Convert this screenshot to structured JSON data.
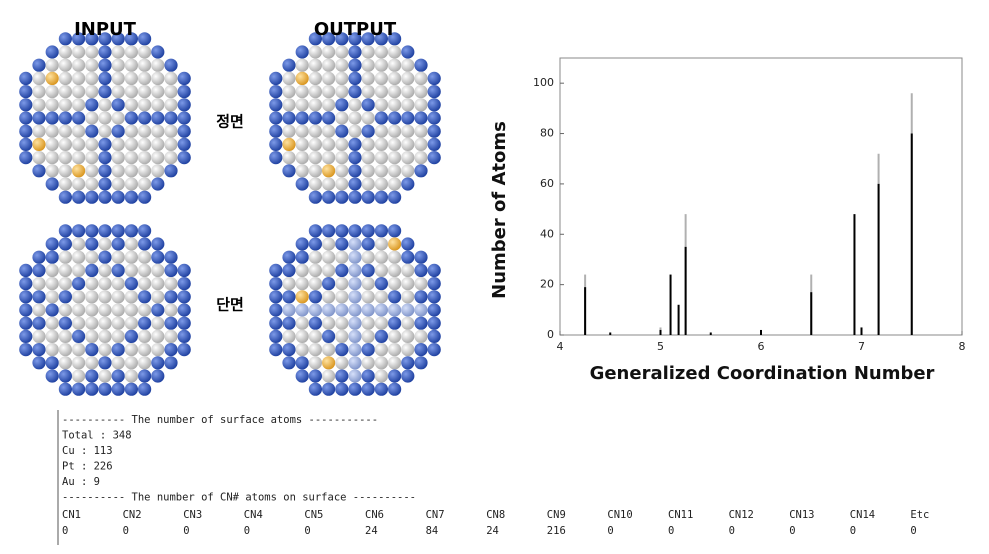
{
  "panels": {
    "input": "INPUT",
    "output": "OUTPUT",
    "front": "정면",
    "section": "단면"
  },
  "chart_data": {
    "type": "spike",
    "x_label": "Generalized Coordination Number",
    "y_label": "Number of Atoms",
    "x": [
      4.25,
      4.5,
      5.0,
      5.1,
      5.18,
      5.25,
      5.5,
      6.0,
      6.5,
      6.93,
      7.0,
      7.17,
      7.5
    ],
    "series": [
      {
        "color": "#b0b0b0",
        "values": [
          24,
          null,
          3,
          null,
          null,
          48,
          null,
          null,
          24,
          null,
          null,
          72,
          96
        ]
      },
      {
        "color": "#000000",
        "values": [
          19,
          1,
          2,
          24,
          12,
          35,
          1,
          2,
          17,
          48,
          3,
          60,
          80
        ]
      }
    ],
    "xlim": [
      4,
      8
    ],
    "xticks": [
      4,
      5,
      6,
      7,
      8
    ],
    "ylim": [
      0,
      110
    ],
    "yticks": [
      0,
      20,
      40,
      60,
      80,
      100
    ]
  },
  "console": {
    "lines": [
      "---------- The number of surface atoms -----------",
      "Total : 348",
      "Cu : 113",
      "Pt : 226",
      "Au : 9",
      "---------- The number of CN# atoms on surface ----------"
    ],
    "cn_headers": [
      "CN1",
      "CN2",
      "CN3",
      "CN4",
      "CN5",
      "CN6",
      "CN7",
      "CN8",
      "CN9",
      "CN10",
      "CN11",
      "CN12",
      "CN13",
      "CN14",
      "Etc"
    ],
    "cn_values": [
      0,
      0,
      0,
      0,
      0,
      24,
      84,
      24,
      216,
      0,
      0,
      0,
      0,
      0,
      0
    ]
  }
}
